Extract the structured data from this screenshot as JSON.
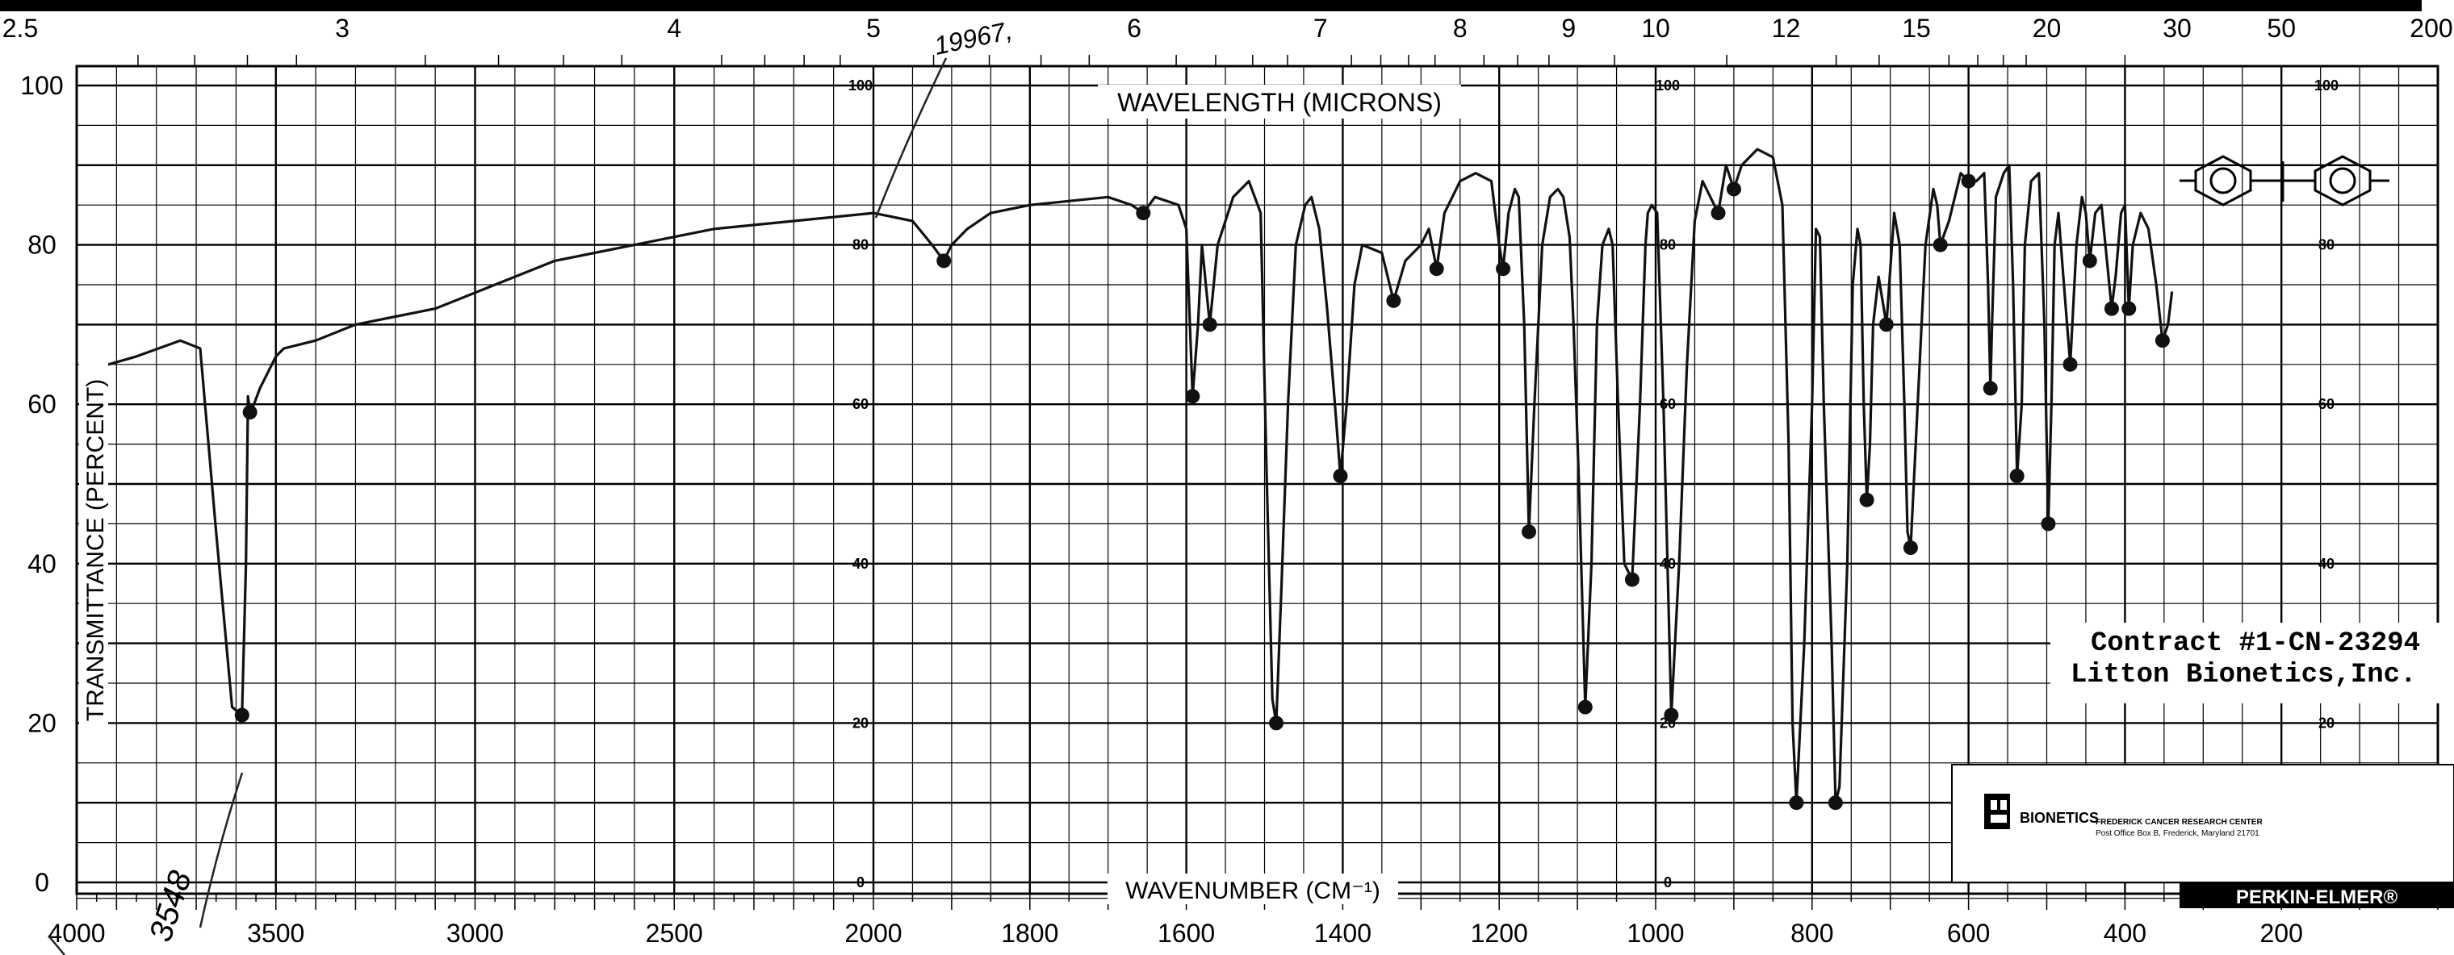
{
  "chart_data": {
    "type": "line",
    "title": "",
    "xlabel": "WAVENUMBER (CM⁻¹)",
    "x2label": "WAVELENGTH (MICRONS)",
    "ylabel": "TRANSMITTANCE (PERCENT)",
    "x_ticks": [
      "4000",
      "3500",
      "3000",
      "2500",
      "2000",
      "1800",
      "1600",
      "1400",
      "1200",
      "1000",
      "800",
      "600",
      "400",
      "200"
    ],
    "x_top_ticks": [
      "2.5",
      "3",
      "4",
      "5",
      "6",
      "7",
      "8",
      "9",
      "10",
      "12",
      "15",
      "20",
      "30",
      "50",
      "200"
    ],
    "y_ticks": [
      "0",
      "20",
      "40",
      "60",
      "80",
      "100"
    ],
    "inner_y_ticks": [
      "0",
      "20",
      "40",
      "60",
      "80",
      "100"
    ],
    "ylim": [
      0,
      100
    ],
    "grid": true,
    "series": [
      {
        "x": [
          3920,
          3850,
          3740,
          3690,
          3650,
          3610,
          3585,
          3575,
          3570,
          3565,
          3555,
          3540,
          3520,
          3510,
          3500,
          3480,
          3400,
          3300,
          3200,
          3100,
          3050,
          3000,
          2900,
          2800,
          2600,
          2400,
          2200,
          2000,
          1950,
          1925,
          1910,
          1900,
          1880,
          1850,
          1800,
          1700,
          1670,
          1655,
          1640,
          1610,
          1600,
          1592,
          1585,
          1580,
          1575,
          1570,
          1560,
          1540,
          1520,
          1505,
          1497,
          1490,
          1485,
          1478,
          1470,
          1460,
          1448,
          1440,
          1430,
          1420,
          1410,
          1403,
          1395,
          1385,
          1375,
          1350,
          1335,
          1320,
          1300,
          1290,
          1280,
          1270,
          1250,
          1230,
          1210,
          1200,
          1195,
          1188,
          1180,
          1175,
          1168,
          1162,
          1155,
          1145,
          1135,
          1125,
          1118,
          1110,
          1105,
          1098,
          1090,
          1082,
          1075,
          1068,
          1060,
          1055,
          1048,
          1040,
          1030,
          1020,
          1013,
          1010,
          1005,
          998,
          990,
          980,
          970,
          960,
          950,
          940,
          930,
          920,
          910,
          900,
          890,
          870,
          850,
          838,
          830,
          825,
          820,
          810,
          800,
          795,
          790,
          785,
          775,
          770,
          765,
          755,
          748,
          742,
          738,
          734,
          730,
          726,
          722,
          715,
          705,
          695,
          688,
          682,
          678,
          674,
          665,
          655,
          645,
          640,
          636,
          625,
          610,
          600,
          590,
          580,
          575,
          572,
          570,
          565,
          555,
          548,
          543,
          538,
          532,
          528,
          520,
          510,
          503,
          498,
          494,
          490,
          485,
          478,
          470,
          462,
          455,
          450,
          445,
          438,
          430,
          423,
          417,
          412,
          405,
          400,
          395,
          390,
          380,
          370,
          360,
          352,
          345,
          340
        ],
        "y": [
          65,
          66,
          68,
          67,
          44,
          22,
          21,
          40,
          61,
          59,
          60,
          62,
          64,
          65,
          66,
          67,
          68,
          70,
          71,
          72,
          73,
          74,
          76,
          78,
          80,
          82,
          83,
          84,
          83,
          80,
          78,
          80,
          82,
          84,
          85,
          86,
          85,
          84,
          86,
          85,
          82,
          61,
          70,
          80,
          75,
          70,
          80,
          86,
          88,
          84,
          50,
          23,
          20,
          38,
          60,
          80,
          85,
          86,
          82,
          72,
          60,
          51,
          60,
          75,
          80,
          79,
          73,
          78,
          80,
          82,
          77,
          84,
          88,
          89,
          88,
          80,
          77,
          84,
          87,
          86,
          70,
          44,
          60,
          80,
          86,
          87,
          86,
          81,
          70,
          50,
          22,
          40,
          70,
          80,
          82,
          80,
          60,
          40,
          38,
          60,
          80,
          84,
          85,
          84,
          60,
          21,
          40,
          65,
          83,
          88,
          86,
          84,
          90,
          87,
          90,
          92,
          91,
          85,
          55,
          20,
          10,
          30,
          60,
          82,
          81,
          60,
          30,
          10,
          12,
          40,
          75,
          82,
          80,
          60,
          48,
          55,
          70,
          76,
          70,
          84,
          80,
          60,
          44,
          42,
          60,
          80,
          87,
          85,
          80,
          83,
          89,
          88,
          88,
          89,
          75,
          62,
          70,
          86,
          89,
          90,
          75,
          51,
          60,
          80,
          88,
          89,
          70,
          45,
          60,
          80,
          84,
          75,
          65,
          80,
          86,
          84,
          78,
          84,
          85,
          78,
          72,
          76,
          84,
          85,
          72,
          80,
          84,
          82,
          75,
          68,
          70,
          74
        ]
      }
    ],
    "annotations": {
      "contract_line1": "Contract #1-CN-23294",
      "contract_line2": "Litton Bionetics,Inc.",
      "brand": "BIONETICS",
      "center_line1": "FREDERICK CANCER RESEARCH CENTER",
      "center_line2": "Post Office Box B, Frederick, Maryland 21701",
      "maker": "PERKIN-ELMER®",
      "handwritten_note": "19967,",
      "handwritten_peak": "3548"
    }
  }
}
